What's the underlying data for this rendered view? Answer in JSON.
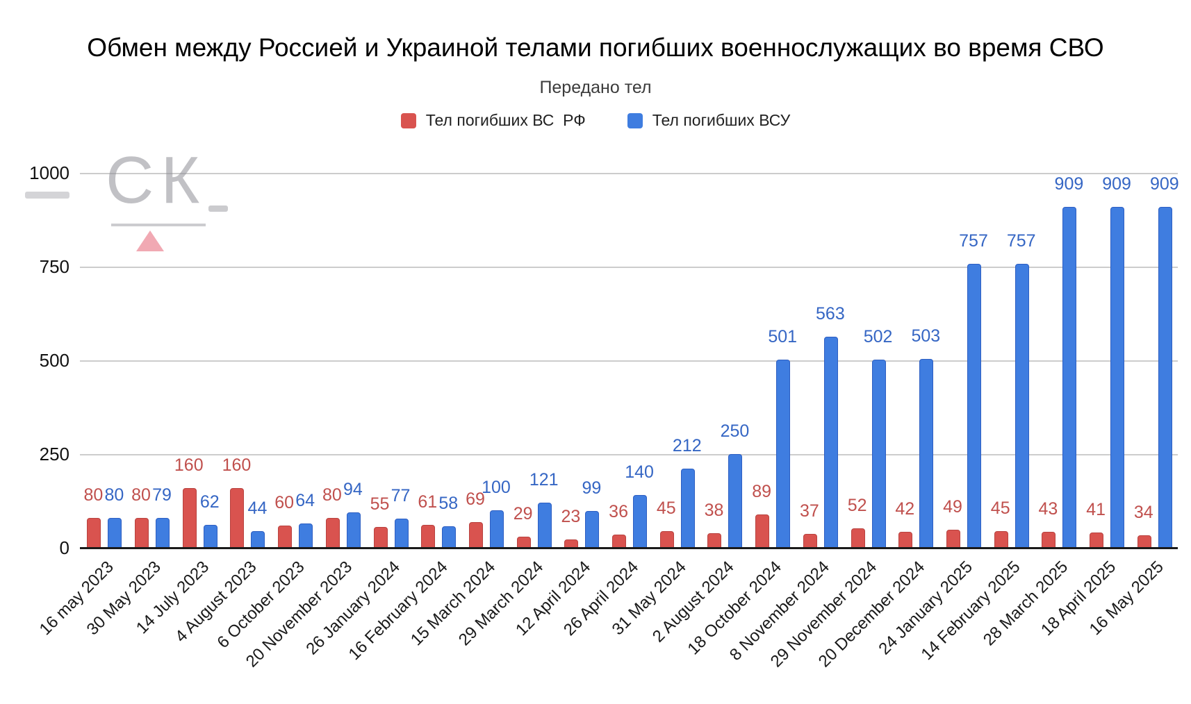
{
  "title": "Обмен между Россией и Украиной телами погибших военнослужащих во время СВО",
  "subtitle": "Передано тел",
  "legend": {
    "items": [
      {
        "label": "Тел погибших ВС  РФ",
        "color": "#d9534f"
      },
      {
        "label": "Тел погибших ВСУ",
        "color": "#3f7de0"
      }
    ]
  },
  "watermark": {
    "text": "СК"
  },
  "chart_data": {
    "type": "bar",
    "title": "Обмен между Россией и Украиной телами погибших военнослужащих во время СВО",
    "subtitle": "Передано тел",
    "categories": [
      "16 may 2023",
      "30 May 2023",
      "14 July 2023",
      "4 August 2023",
      "6 October 2023",
      "20 November 2023",
      "26 January 2024",
      "16 February 2024",
      "15 March 2024",
      "29 March 2024",
      "12 April 2024",
      "26 April 2024",
      "31 May 2024",
      "2 August 2024",
      "18 October 2024",
      "8 November 2024",
      "29 November 2024",
      "20 December 2024",
      "24 January 2025",
      "14 February 2025",
      "28 March 2025",
      "18 April 2025",
      "16 May 2025"
    ],
    "series": [
      {
        "name": "Тел погибших ВС  РФ",
        "color": "#d9534f",
        "border_color": "#b8423f",
        "label_color": "#c0504d",
        "values": [
          80,
          80,
          160,
          160,
          60,
          80,
          55,
          61,
          69,
          29,
          23,
          36,
          45,
          38,
          89,
          37,
          52,
          42,
          49,
          45,
          43,
          41,
          34
        ]
      },
      {
        "name": "Тел погибших ВСУ",
        "color": "#3f7de0",
        "border_color": "#2d5ec2",
        "label_color": "#3566c4",
        "values": [
          80,
          79,
          62,
          44,
          64,
          94,
          77,
          58,
          100,
          121,
          99,
          140,
          212,
          250,
          501,
          563,
          502,
          503,
          757,
          757,
          909,
          909,
          909
        ]
      }
    ],
    "ylim": [
      0,
      1000
    ],
    "yticks": [
      0,
      250,
      500,
      750,
      1000
    ],
    "grid": true,
    "legend_position": "top",
    "data_labels": true
  }
}
